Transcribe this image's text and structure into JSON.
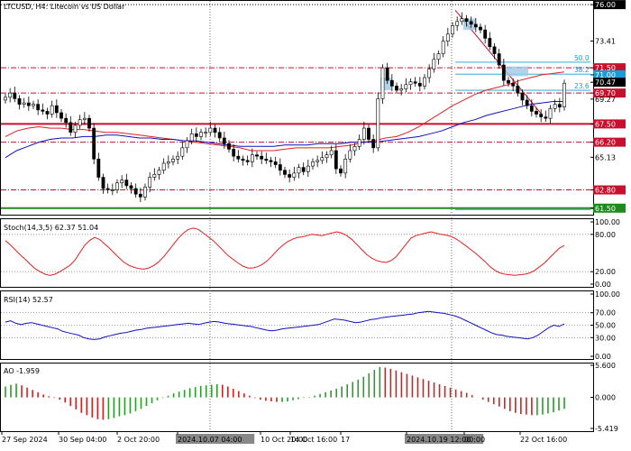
{
  "colors": {
    "resistance": "#c8102e",
    "support": "#1e8a1e",
    "fib": "#1a9bd7",
    "ma_fast": "#e02020",
    "ma_slow": "#1010c0",
    "candle_up": "#1aa0d0",
    "candle_down": "#000000",
    "rsi_line": "#1010c0",
    "stoch_line": "#e02020",
    "ao_up": "#2a9a2a",
    "ao_down": "#d02020",
    "highlight_tag_bg": "#000000",
    "highlight_tag_text": "#ffffff"
  },
  "chart_data": {
    "type": "candlestick",
    "title": "LTCUSD, H4:  Litecoin vs US Dollar",
    "ylim": [
      61.1,
      76.2
    ],
    "price_tags": [
      {
        "label": "76.00",
        "value": 76.0,
        "style": "black"
      },
      {
        "label": "73.41",
        "value": 73.41,
        "style": "plain"
      },
      {
        "label": "71.50",
        "value": 71.5,
        "style": "red"
      },
      {
        "label": "71.00",
        "value": 71.0,
        "style": "blue"
      },
      {
        "label": "70.47",
        "value": 70.47,
        "style": "black"
      },
      {
        "label": "69.70",
        "value": 69.7,
        "style": "red"
      },
      {
        "label": "69.27",
        "value": 69.27,
        "style": "plain"
      },
      {
        "label": "67.50",
        "value": 67.5,
        "style": "red"
      },
      {
        "label": "66.20",
        "value": 66.2,
        "style": "red"
      },
      {
        "label": "65.13",
        "value": 65.13,
        "style": "plain"
      },
      {
        "label": "62.80",
        "value": 62.8,
        "style": "red"
      },
      {
        "label": "61.50",
        "value": 61.5,
        "style": "green"
      }
    ],
    "levels": [
      {
        "value": 76.0,
        "kind": "dotted-black"
      },
      {
        "value": 71.5,
        "kind": "dashdot-red"
      },
      {
        "value": 69.7,
        "kind": "dashdot-red"
      },
      {
        "value": 67.5,
        "kind": "solid-red"
      },
      {
        "value": 66.2,
        "kind": "dashdot-red"
      },
      {
        "value": 62.8,
        "kind": "dashdot-red"
      },
      {
        "value": 61.5,
        "kind": "solid-green"
      }
    ],
    "fib_levels": [
      {
        "label": "50.0",
        "value": 71.9
      },
      {
        "label": "38.2",
        "value": 71.05
      },
      {
        "label": "23.6",
        "value": 69.9
      }
    ],
    "x_labels": [
      "27 Sep 2024",
      "30 Sep 04:00",
      "2 Oct 20:00",
      "2024.10.07 04:00",
      "10 Oct 20:00",
      "14 Oct 16:00",
      "17",
      "2024.10.19 12:00",
      "00:00",
      "22 Oct 16:00"
    ],
    "x_label_highlight": [
      false,
      false,
      false,
      true,
      false,
      false,
      false,
      true,
      false,
      false
    ],
    "close": [
      69.4,
      69.7,
      69.3,
      68.9,
      69.0,
      68.8,
      68.9,
      68.5,
      68.4,
      68.2,
      68.8,
      68.3,
      67.9,
      67.6,
      66.9,
      67.4,
      67.8,
      67.9,
      67.2,
      65.0,
      63.7,
      62.9,
      62.8,
      62.8,
      63.3,
      63.5,
      63.1,
      62.9,
      62.5,
      62.3,
      63.0,
      63.7,
      63.9,
      64.2,
      64.7,
      64.8,
      65.0,
      65.2,
      65.8,
      66.3,
      66.8,
      66.6,
      66.9,
      66.9,
      67.2,
      66.9,
      66.5,
      66.1,
      65.7,
      65.2,
      65.0,
      64.9,
      64.8,
      65.3,
      65.2,
      65.0,
      64.9,
      64.8,
      64.6,
      64.2,
      63.9,
      63.7,
      64.0,
      64.4,
      64.1,
      64.5,
      64.8,
      64.9,
      65.1,
      65.3,
      65.6,
      64.3,
      64.0,
      65.0,
      65.6,
      65.9,
      66.4,
      67.2,
      66.4,
      65.8,
      69.3,
      71.5,
      70.6,
      70.2,
      69.9,
      70.0,
      70.3,
      70.5,
      70.4,
      70.2,
      70.8,
      71.4,
      72.1,
      72.5,
      73.4,
      73.9,
      74.5,
      74.8,
      75.0,
      74.8,
      74.6,
      74.4,
      74.2,
      73.6,
      73.0,
      72.5,
      71.7,
      70.6,
      70.4,
      70.2,
      69.7,
      69.2,
      68.8,
      68.4,
      68.2,
      68.0,
      67.9,
      68.6,
      68.9,
      68.7,
      70.4
    ],
    "ma_fast": [
      66.6,
      67.0,
      67.2,
      67.3,
      67.2,
      67.2,
      67.1,
      67.1,
      67.0,
      66.9,
      66.9,
      66.8,
      66.7,
      66.6,
      66.5,
      66.4,
      66.3,
      66.2,
      66.1,
      66.0,
      65.9,
      65.8,
      65.6,
      65.6,
      65.6,
      65.7,
      65.8,
      65.8,
      65.8,
      65.8,
      65.9,
      66.0,
      66.2,
      66.3,
      66.5,
      66.6,
      66.9,
      67.3,
      67.8,
      68.3,
      68.8,
      69.2,
      69.6,
      69.9,
      70.1,
      70.3,
      70.6,
      70.8,
      71.0,
      71.1,
      71.2
    ],
    "ma_slow": [
      65.1,
      65.6,
      65.9,
      66.2,
      66.4,
      66.5,
      66.5,
      66.6,
      66.6,
      66.7,
      66.7,
      66.6,
      66.5,
      66.5,
      66.4,
      66.4,
      66.3,
      66.3,
      66.2,
      66.1,
      66.0,
      65.9,
      65.9,
      65.9,
      65.9,
      66.0,
      66.0,
      66.0,
      66.1,
      66.1,
      66.1,
      66.2,
      66.2,
      66.2,
      66.3,
      66.4,
      66.5,
      66.6,
      66.8,
      67.0,
      67.3,
      67.6,
      67.8,
      68.1,
      68.3,
      68.5,
      68.7,
      68.9,
      69.0,
      69.1,
      69.1
    ]
  },
  "indicators": {
    "stoch": {
      "label": "Stoch(14,3,5) 62.37 51.04",
      "ticks": [
        "100.00",
        "80.00",
        "20.00",
        "0.00"
      ],
      "range": [
        0,
        100
      ],
      "values": [
        70,
        63,
        55,
        47,
        40,
        32,
        25,
        20,
        16,
        14,
        16,
        20,
        25,
        30,
        38,
        50,
        62,
        70,
        75,
        72,
        65,
        58,
        50,
        42,
        35,
        30,
        27,
        25,
        24,
        26,
        30,
        36,
        44,
        54,
        64,
        74,
        82,
        88,
        90,
        88,
        82,
        76,
        70,
        62,
        54,
        46,
        40,
        34,
        29,
        26,
        26,
        28,
        32,
        38,
        46,
        55,
        62,
        68,
        72,
        75,
        76,
        78,
        80,
        79,
        78,
        80,
        82,
        84,
        82,
        78,
        72,
        64,
        56,
        48,
        42,
        38,
        36,
        35,
        38,
        44,
        54,
        64,
        74,
        78,
        80,
        82,
        84,
        82,
        80,
        79,
        77,
        73,
        68,
        62,
        56,
        50,
        43,
        36,
        28,
        22,
        18,
        16,
        15,
        14,
        15,
        16,
        18,
        22,
        28,
        34,
        42,
        50,
        58,
        62
      ]
    },
    "rsi": {
      "label": "RSI(14) 52.57",
      "ticks": [
        "100.00",
        "70.00",
        "50.00",
        "30.00",
        "0.00"
      ],
      "range": [
        0,
        100
      ],
      "values": [
        55,
        57,
        53,
        51,
        53,
        54,
        52,
        50,
        48,
        46,
        44,
        40,
        38,
        36,
        34,
        30,
        28,
        27,
        28,
        31,
        33,
        35,
        37,
        38,
        40,
        42,
        43,
        45,
        46,
        47,
        48,
        49,
        50,
        51,
        52,
        53,
        52,
        51,
        53,
        55,
        56,
        55,
        53,
        52,
        51,
        50,
        49,
        48,
        46,
        44,
        42,
        41,
        42,
        44,
        45,
        46,
        47,
        48,
        49,
        50,
        51,
        54,
        57,
        60,
        59,
        58,
        56,
        54,
        55,
        57,
        59,
        60,
        62,
        63,
        64,
        65,
        66,
        67,
        68,
        70,
        71,
        72,
        71,
        70,
        69,
        67,
        65,
        62,
        58,
        54,
        50,
        46,
        42,
        38,
        35,
        34,
        32,
        31,
        30,
        29,
        28,
        30,
        34,
        40,
        46,
        50,
        48,
        52
      ]
    },
    "ao": {
      "label": "AO -1.959",
      "ticks": [
        "5.600",
        "0.000",
        "-5.419"
      ],
      "range": [
        -5.419,
        5.6
      ],
      "values": [
        1.9,
        2.2,
        2.4,
        2.1,
        1.7,
        1.3,
        0.9,
        0.5,
        0.2,
        -0.1,
        -0.4,
        -0.9,
        -1.5,
        -2.1,
        -2.7,
        -3.1,
        -3.5,
        -3.8,
        -3.9,
        -3.8,
        -3.6,
        -3.3,
        -3.1,
        -2.8,
        -2.4,
        -2.0,
        -1.5,
        -1.0,
        -0.5,
        -0.1,
        0.3,
        0.7,
        1.0,
        1.3,
        1.6,
        1.8,
        2.0,
        2.1,
        2.2,
        2.3,
        2.2,
        1.9,
        1.5,
        1.1,
        0.7,
        0.3,
        -0.1,
        -0.4,
        -0.6,
        -0.7,
        -0.8,
        -0.8,
        -0.7,
        -0.5,
        -0.3,
        -0.1,
        0.1,
        0.3,
        0.6,
        0.9,
        1.2,
        1.5,
        1.9,
        2.3,
        2.7,
        3.1,
        3.6,
        4.2,
        4.8,
        5.3,
        5.2,
        5.0,
        4.7,
        4.4,
        4.1,
        3.8,
        3.5,
        3.2,
        2.9,
        2.6,
        2.3,
        2.0,
        1.7,
        1.4,
        1.1,
        0.8,
        0.4,
        0.0,
        -0.4,
        -0.8,
        -1.2,
        -1.6,
        -2.0,
        -2.4,
        -2.7,
        -2.9,
        -3.0,
        -3.1,
        -3.1,
        -3.0,
        -2.8,
        -2.6,
        -2.3,
        -2.0
      ]
    }
  }
}
